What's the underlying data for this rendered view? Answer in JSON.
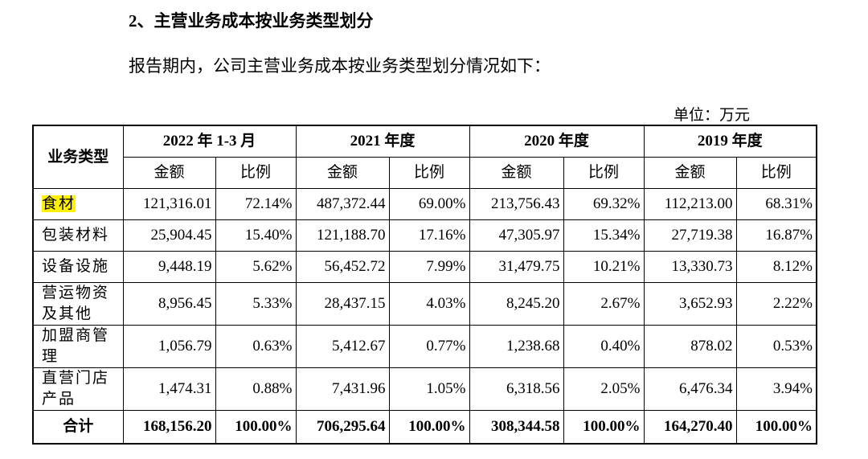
{
  "heading": "2、主营业务成本按业务类型划分",
  "intro": "报告期内，公司主营业务成本按业务类型划分情况如下：",
  "unit": "单位：万元",
  "table": {
    "corner": "业务类型",
    "periods": [
      "2022 年 1-3 月",
      "2021 年度",
      "2020 年度",
      "2019 年度"
    ],
    "sub_headers": [
      "金额",
      "比例",
      "金额",
      "比例",
      "金额",
      "比例",
      "金额",
      "比例"
    ],
    "rows": [
      [
        "食材",
        "121,316.01",
        "72.14%",
        "487,372.44",
        "69.00%",
        "213,756.43",
        "69.32%",
        "112,213.00",
        "68.31%"
      ],
      [
        "包装材料",
        "25,904.45",
        "15.40%",
        "121,188.70",
        "17.16%",
        "47,305.97",
        "15.34%",
        "27,719.38",
        "16.87%"
      ],
      [
        "设备设施",
        "9,448.19",
        "5.62%",
        "56,452.72",
        "7.99%",
        "31,479.75",
        "10.21%",
        "13,330.73",
        "8.12%"
      ],
      [
        "营运物资及其他",
        "8,956.45",
        "5.33%",
        "28,437.15",
        "4.03%",
        "8,245.20",
        "2.67%",
        "3,652.93",
        "2.22%"
      ],
      [
        "加盟商管理",
        "1,056.79",
        "0.63%",
        "5,412.67",
        "0.77%",
        "1,238.68",
        "0.40%",
        "878.02",
        "0.53%"
      ],
      [
        "直营门店产品",
        "1,474.31",
        "0.88%",
        "7,431.96",
        "1.05%",
        "6,318.56",
        "2.05%",
        "6,476.34",
        "3.94%"
      ]
    ],
    "total": [
      "合计",
      "168,156.20",
      "100.00%",
      "706,295.64",
      "100.00%",
      "308,344.58",
      "100.00%",
      "164,270.40",
      "100.00%"
    ]
  }
}
